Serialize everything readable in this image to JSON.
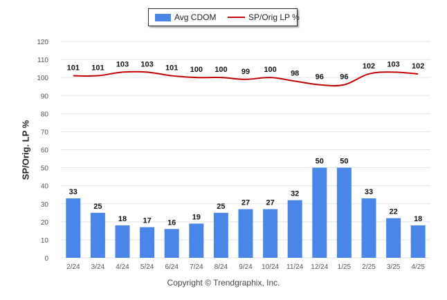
{
  "legend": {
    "bar_label": "Avg CDOM",
    "line_label": "SP/Orig LP %"
  },
  "copyright": "Copyright © Trendgraphix, Inc.",
  "colors": {
    "bar": "#4a86e8",
    "line": "#c00000",
    "grid": "#e3e3e3",
    "axis_text": "#555555"
  },
  "chart_data": {
    "type": "bar",
    "ylabel": "SP/Orig. LP %",
    "ylim": [
      0,
      120
    ],
    "yticks": [
      0,
      10,
      20,
      30,
      40,
      50,
      60,
      70,
      80,
      90,
      100,
      110,
      120
    ],
    "grid": true,
    "legend_position": "top-center",
    "categories": [
      "2/24",
      "3/24",
      "4/24",
      "5/24",
      "6/24",
      "7/24",
      "8/24",
      "9/24",
      "10/24",
      "11/24",
      "12/24",
      "1/25",
      "2/25",
      "3/25",
      "4/25"
    ],
    "series": [
      {
        "name": "Avg CDOM",
        "type": "bar",
        "values": [
          33,
          25,
          18,
          17,
          16,
          19,
          25,
          27,
          27,
          32,
          50,
          50,
          33,
          22,
          18
        ]
      },
      {
        "name": "SP/Orig LP %",
        "type": "line",
        "values": [
          101,
          101,
          103,
          103,
          101,
          100,
          100,
          99,
          100,
          98,
          96,
          96,
          102,
          103,
          102
        ]
      }
    ]
  }
}
